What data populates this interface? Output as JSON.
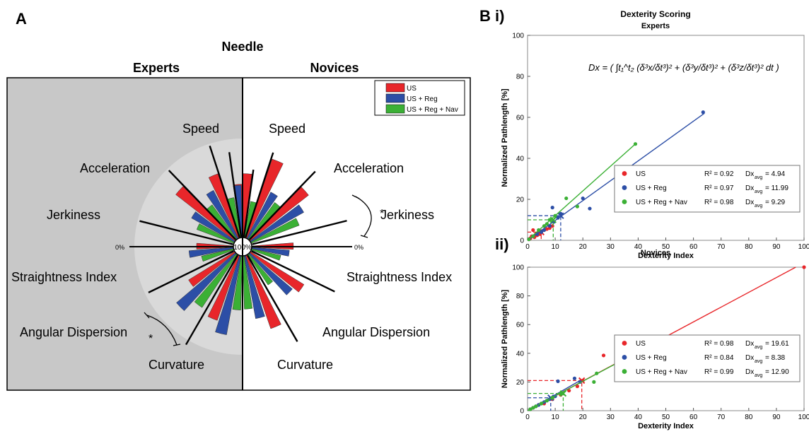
{
  "panel_letters": {
    "a": "A",
    "b": "B",
    "b_i": "i)",
    "b_ii": "ii)"
  },
  "colors": {
    "US": "#e8262a",
    "US + Reg": "#2c4ea6",
    "US + Reg + Nav": "#3bb035",
    "expert_bg": "#c8c8c8",
    "expert_disc": "#d9d9d9"
  },
  "chart_data": [
    {
      "type": "bar",
      "subtype": "polar-bar",
      "title": "Needle",
      "left_label": "Experts",
      "right_label": "Novices",
      "legend": [
        "US",
        "US + Reg",
        "US + Reg + Nav"
      ],
      "legend_placement": "top-right",
      "radial_labels": {
        "outer": "0%",
        "center": "100%"
      },
      "metrics": [
        "Speed",
        "Acceleration",
        "Jerkiness",
        "Straightness Index",
        "Angular Dispersion",
        "Curvature"
      ],
      "significance": {
        "symbol": "*",
        "novices": "Jerkiness",
        "experts": "Angular Dispersion"
      },
      "experts": {
        "Speed": {
          "US": 66,
          "US + Reg": 54,
          "US + Reg + Nav": 42
        },
        "Acceleration": {
          "US": 70,
          "US + Reg": 56,
          "US + Reg + Nav": 44
        },
        "Jerkiness": {
          "US": 78,
          "US + Reg": 51,
          "US + Reg + Nav": 41
        },
        "Straightness Index": {
          "US": 38,
          "US + Reg": 46,
          "US + Reg + Nav": 34
        },
        "Angular Dispersion": {
          "US": 56,
          "US + Reg": 80,
          "US + Reg + Nav": 66
        },
        "Curvature": {
          "US": 71,
          "US + Reg": 83,
          "US + Reg + Nav": 56
        }
      },
      "novices": {
        "Speed": {
          "US": 55,
          "US + Reg": 45,
          "US + Reg + Nav": 38
        },
        "Acceleration": {
          "US": 86,
          "US + Reg": 54,
          "US + Reg + Nav": 47
        },
        "Jerkiness": {
          "US": 77,
          "US + Reg": 63,
          "US + Reg + Nav": 53
        },
        "Straightness Index": {
          "US": 43,
          "US + Reg": 39,
          "US + Reg + Nav": 31
        },
        "Angular Dispersion": {
          "US": 65,
          "US + Reg": 58,
          "US + Reg + Nav": 38
        },
        "Curvature": {
          "US": 80,
          "US + Reg": 66,
          "US + Reg + Nav": 55
        }
      }
    },
    {
      "type": "scatter",
      "title": "Dexterity Scoring",
      "subtitle": "Experts",
      "formula": "Dx = ( ∫t₁^t₂ (δ³x/δt³)² + (δ³y/δt³)² + (δ³z/δt³)² dt )",
      "xlabel": "Dexterity Index",
      "ylabel": "Normalized Pathlength [%]",
      "xlim": [
        0,
        100
      ],
      "ylim": [
        0,
        100
      ],
      "xticks": [
        0,
        10,
        20,
        30,
        40,
        50,
        60,
        70,
        80,
        90,
        100
      ],
      "yticks": [
        0,
        20,
        40,
        60,
        80,
        100
      ],
      "legend_placement": "right",
      "series": [
        {
          "name": "US",
          "r2": "R² = 0.92",
          "dx": "Dx",
          "dx_sub": "avg",
          "dx_val": "= 4.94",
          "avg": 4.94,
          "avg_y": 4,
          "fit": [
            [
              0,
              0.5
            ],
            [
              9,
              7
            ]
          ],
          "x": [
            0.5,
            1,
            1.5,
            2,
            2.5,
            3,
            3.5,
            4,
            4.5,
            5,
            6,
            7,
            8,
            9
          ],
          "y": [
            0.5,
            1,
            2,
            5,
            1.5,
            3,
            2.5,
            4,
            3,
            4.5,
            5,
            5.5,
            6,
            7
          ]
        },
        {
          "name": "US + Reg",
          "r2": "R² = 0.97",
          "dx": "Dx",
          "dx_sub": "avg",
          "dx_val": "= 11.99",
          "avg": 11.99,
          "avg_y": 12,
          "fit": [
            [
              0,
              0
            ],
            [
              64,
              62
            ]
          ],
          "x": [
            0.5,
            2,
            3.5,
            5,
            6,
            8,
            9,
            9.5,
            11,
            12,
            20,
            22.5,
            63.5
          ],
          "y": [
            0.5,
            2,
            3,
            4,
            5,
            7,
            16,
            9,
            11,
            13,
            20.5,
            15.5,
            62.5
          ]
        },
        {
          "name": "US + Reg + Nav",
          "r2": "R² = 0.98",
          "dx": "Dx",
          "dx_sub": "avg",
          "dx_val": "= 9.29",
          "avg": 9.29,
          "avg_y": 10,
          "fit": [
            [
              0,
              0
            ],
            [
              39,
              47
            ]
          ],
          "x": [
            0.5,
            2,
            4,
            6,
            7,
            8,
            10,
            14,
            18,
            39
          ],
          "y": [
            0.5,
            2,
            5,
            7,
            8,
            10,
            12,
            20.5,
            16.5,
            47
          ]
        }
      ]
    },
    {
      "type": "scatter",
      "title": "Novices",
      "xlabel": "Dexterity Index",
      "ylabel": "Normalized Pathlength [%]",
      "xlim": [
        0,
        100
      ],
      "ylim": [
        0,
        100
      ],
      "xticks": [
        0,
        10,
        20,
        30,
        40,
        50,
        60,
        70,
        80,
        90,
        100
      ],
      "yticks": [
        0,
        20,
        40,
        60,
        80,
        100
      ],
      "legend_placement": "right",
      "series": [
        {
          "name": "US",
          "r2": "R² = 0.98",
          "dx": "Dx",
          "dx_sub": "avg",
          "dx_val": "= 19.61",
          "avg": 19.61,
          "avg_y": 21,
          "fit": [
            [
              0,
              0
            ],
            [
              97,
              100
            ]
          ],
          "x": [
            1,
            2,
            4,
            6,
            9,
            12,
            15,
            18,
            20,
            27.5,
            39,
            100
          ],
          "y": [
            1,
            2,
            4,
            5,
            8,
            11,
            14,
            17,
            21,
            38.5,
            48,
            100
          ]
        },
        {
          "name": "US + Reg",
          "r2": "R² = 0.84",
          "dx": "Dx",
          "dx_sub": "avg",
          "dx_val": "= 8.38",
          "avg": 8.38,
          "avg_y": 9,
          "fit": [
            [
              0,
              0
            ],
            [
              19,
              21
            ]
          ],
          "x": [
            1,
            2,
            3,
            4,
            5,
            6,
            7,
            8,
            10,
            11,
            17,
            19
          ],
          "y": [
            1,
            2,
            3,
            4,
            5,
            6,
            7,
            8,
            10,
            20.5,
            22.5,
            20
          ]
        },
        {
          "name": "US + Reg + Nav",
          "r2": "R² = 0.99",
          "dx": "Dx",
          "dx_sub": "avg",
          "dx_val": "= 12.90",
          "avg": 12.9,
          "avg_y": 12,
          "fit": [
            [
              0,
              0
            ],
            [
              40,
              41
            ]
          ],
          "x": [
            1,
            2,
            3,
            5,
            7,
            9,
            12,
            24,
            25,
            40
          ],
          "y": [
            1,
            2,
            3,
            5,
            7,
            9,
            12,
            20,
            26,
            41
          ]
        }
      ]
    }
  ]
}
